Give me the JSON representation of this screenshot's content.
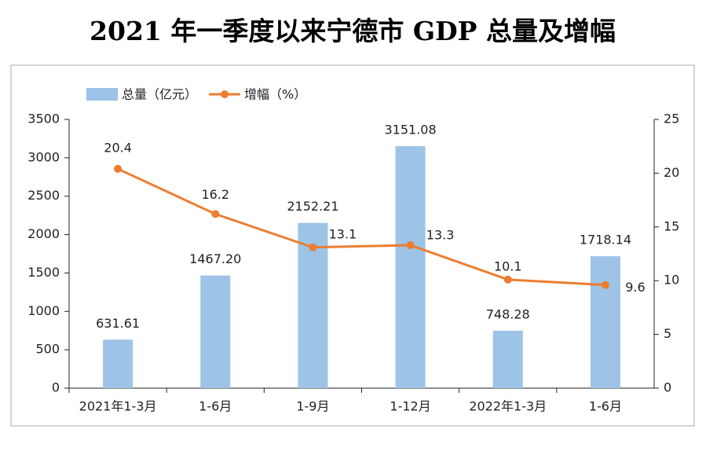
{
  "chart_data": {
    "type": "bar",
    "title": "2021 年一季度以来宁德市 GDP 总量及增幅",
    "categories": [
      "2021年1-3月",
      "1-6月",
      "1-9月",
      "1-12月",
      "2022年1-3月",
      "1-6月"
    ],
    "series": [
      {
        "name": "总量（亿元）",
        "type": "bar",
        "color": "#9dc3e6",
        "values": [
          631.61,
          1467.2,
          2152.21,
          3151.08,
          748.28,
          1718.14
        ],
        "value_labels": [
          "631.61",
          "1467.20",
          "2152.21",
          "3151.08",
          "748.28",
          "1718.14"
        ]
      },
      {
        "name": "增幅（%）",
        "type": "line",
        "axis": "y2",
        "color": "#ed7d31",
        "values": [
          20.4,
          16.2,
          13.1,
          13.3,
          10.1,
          9.6
        ]
      }
    ],
    "ylim": [
      0,
      3500
    ],
    "yticks": [
      0,
      500,
      1000,
      1500,
      2000,
      2500,
      3000,
      3500
    ],
    "y2lim": [
      0,
      25
    ],
    "y2ticks": [
      0,
      5,
      10,
      15,
      20,
      25
    ],
    "grid": false
  }
}
